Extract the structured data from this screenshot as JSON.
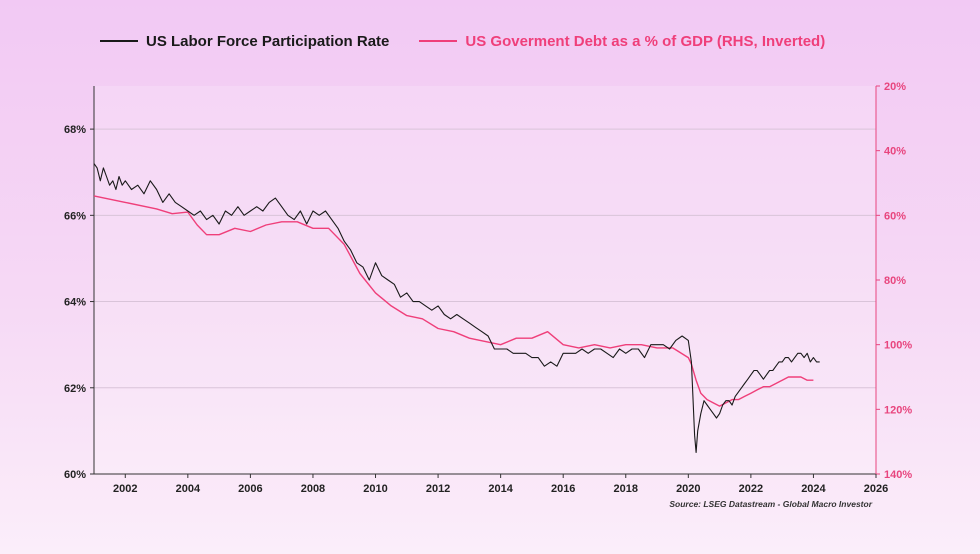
{
  "colors": {
    "lfpr": "#1a1a1a",
    "debt": "#ef3f7a",
    "rhs_axis": "#e8457e",
    "grid": "#d9c4d9"
  },
  "chart_data": {
    "type": "line",
    "legend": [
      {
        "name": "US Labor Force Participation Rate",
        "color": "#1a1a1a"
      },
      {
        "name": "US Goverment Debt as a % of GDP (RHS, Inverted)",
        "color": "#ef3f7a"
      }
    ],
    "x_ticks": [
      "2002",
      "2004",
      "2006",
      "2008",
      "2010",
      "2012",
      "2014",
      "2016",
      "2018",
      "2020",
      "2022",
      "2024",
      "2026"
    ],
    "x_range": [
      2001,
      2026
    ],
    "y_left": {
      "range": [
        60,
        69
      ],
      "ticks": [
        "60%",
        "62%",
        "64%",
        "66%",
        "68%"
      ],
      "tick_values": [
        60,
        62,
        64,
        66,
        68
      ]
    },
    "y_right": {
      "range": [
        140,
        20
      ],
      "inverted": true,
      "ticks": [
        "20%",
        "40%",
        "60%",
        "80%",
        "100%",
        "120%",
        "140%"
      ],
      "tick_values": [
        20,
        40,
        60,
        80,
        100,
        120,
        140
      ]
    },
    "grid": true,
    "source": "Source: LSEG Datastream - Global Macro Investor",
    "series": [
      {
        "name": "US Labor Force Participation Rate",
        "axis": "left",
        "x": [
          2001.0,
          2001.1,
          2001.2,
          2001.3,
          2001.4,
          2001.5,
          2001.6,
          2001.7,
          2001.8,
          2001.9,
          2002.0,
          2002.2,
          2002.4,
          2002.6,
          2002.8,
          2003.0,
          2003.2,
          2003.4,
          2003.6,
          2003.8,
          2004.0,
          2004.2,
          2004.4,
          2004.6,
          2004.8,
          2005.0,
          2005.2,
          2005.4,
          2005.6,
          2005.8,
          2006.0,
          2006.2,
          2006.4,
          2006.6,
          2006.8,
          2007.0,
          2007.2,
          2007.4,
          2007.6,
          2007.8,
          2008.0,
          2008.2,
          2008.4,
          2008.6,
          2008.8,
          2009.0,
          2009.2,
          2009.4,
          2009.6,
          2009.8,
          2010.0,
          2010.2,
          2010.4,
          2010.6,
          2010.8,
          2011.0,
          2011.2,
          2011.4,
          2011.6,
          2011.8,
          2012.0,
          2012.2,
          2012.4,
          2012.6,
          2012.8,
          2013.0,
          2013.2,
          2013.4,
          2013.6,
          2013.8,
          2014.0,
          2014.2,
          2014.4,
          2014.6,
          2014.8,
          2015.0,
          2015.2,
          2015.4,
          2015.6,
          2015.8,
          2016.0,
          2016.2,
          2016.4,
          2016.6,
          2016.8,
          2017.0,
          2017.2,
          2017.4,
          2017.6,
          2017.8,
          2018.0,
          2018.2,
          2018.4,
          2018.6,
          2018.8,
          2019.0,
          2019.2,
          2019.4,
          2019.6,
          2019.8,
          2020.0,
          2020.1,
          2020.2,
          2020.25,
          2020.3,
          2020.4,
          2020.5,
          2020.6,
          2020.7,
          2020.8,
          2020.9,
          2021.0,
          2021.1,
          2021.2,
          2021.3,
          2021.4,
          2021.5,
          2021.6,
          2021.7,
          2021.8,
          2021.9,
          2022.0,
          2022.1,
          2022.2,
          2022.3,
          2022.4,
          2022.5,
          2022.6,
          2022.7,
          2022.8,
          2022.9,
          2023.0,
          2023.1,
          2023.2,
          2023.3,
          2023.4,
          2023.5,
          2023.6,
          2023.7,
          2023.8,
          2023.9,
          2024.0,
          2024.1,
          2024.2
        ],
        "values": [
          67.2,
          67.1,
          66.8,
          67.1,
          66.9,
          66.7,
          66.8,
          66.6,
          66.9,
          66.7,
          66.8,
          66.6,
          66.7,
          66.5,
          66.8,
          66.6,
          66.3,
          66.5,
          66.3,
          66.2,
          66.1,
          66.0,
          66.1,
          65.9,
          66.0,
          65.8,
          66.1,
          66.0,
          66.2,
          66.0,
          66.1,
          66.2,
          66.1,
          66.3,
          66.4,
          66.2,
          66.0,
          65.9,
          66.1,
          65.8,
          66.1,
          66.0,
          66.1,
          65.9,
          65.7,
          65.4,
          65.2,
          64.9,
          64.8,
          64.5,
          64.9,
          64.6,
          64.5,
          64.4,
          64.1,
          64.2,
          64.0,
          64.0,
          63.9,
          63.8,
          63.9,
          63.7,
          63.6,
          63.7,
          63.6,
          63.5,
          63.4,
          63.3,
          63.2,
          62.9,
          62.9,
          62.9,
          62.8,
          62.8,
          62.8,
          62.7,
          62.7,
          62.5,
          62.6,
          62.5,
          62.8,
          62.8,
          62.8,
          62.9,
          62.8,
          62.9,
          62.9,
          62.8,
          62.7,
          62.9,
          62.8,
          62.9,
          62.9,
          62.7,
          63.0,
          63.0,
          63.0,
          62.9,
          63.1,
          63.2,
          63.1,
          62.6,
          60.9,
          60.5,
          61.0,
          61.4,
          61.7,
          61.6,
          61.5,
          61.4,
          61.3,
          61.4,
          61.6,
          61.7,
          61.7,
          61.6,
          61.8,
          61.9,
          62.0,
          62.1,
          62.2,
          62.3,
          62.4,
          62.4,
          62.3,
          62.2,
          62.3,
          62.4,
          62.4,
          62.5,
          62.6,
          62.6,
          62.7,
          62.7,
          62.6,
          62.7,
          62.8,
          62.8,
          62.7,
          62.8,
          62.6,
          62.7,
          62.6,
          62.6
        ],
        "color": "#1a1a1a"
      },
      {
        "name": "US Goverment Debt as a % of GDP (RHS, Inverted)",
        "axis": "right",
        "x": [
          2001.0,
          2002.0,
          2003.0,
          2003.5,
          2004.0,
          2004.3,
          2004.6,
          2005.0,
          2005.5,
          2006.0,
          2006.5,
          2007.0,
          2007.5,
          2008.0,
          2008.5,
          2009.0,
          2009.5,
          2010.0,
          2010.5,
          2011.0,
          2011.5,
          2012.0,
          2012.5,
          2013.0,
          2013.5,
          2014.0,
          2014.5,
          2015.0,
          2015.5,
          2016.0,
          2016.5,
          2017.0,
          2017.5,
          2018.0,
          2018.5,
          2019.0,
          2019.5,
          2020.0,
          2020.1,
          2020.25,
          2020.4,
          2020.6,
          2020.8,
          2021.0,
          2021.2,
          2021.4,
          2021.6,
          2021.8,
          2022.0,
          2022.2,
          2022.4,
          2022.6,
          2022.8,
          2023.0,
          2023.2,
          2023.4,
          2023.6,
          2023.8,
          2024.0
        ],
        "values": [
          54,
          56,
          58,
          59.5,
          59,
          63,
          66,
          66,
          64,
          65,
          63,
          62,
          62,
          64,
          64,
          69,
          78,
          84,
          88,
          91,
          92,
          95,
          96,
          98,
          99,
          100,
          98,
          98,
          96,
          100,
          101,
          100,
          101,
          100,
          100,
          101,
          101,
          104,
          106,
          111,
          115,
          117,
          118,
          119,
          118,
          117,
          117,
          116,
          115,
          114,
          113,
          113,
          112,
          111,
          110,
          110,
          110,
          111,
          111
        ],
        "color": "#ef3f7a"
      }
    ]
  }
}
